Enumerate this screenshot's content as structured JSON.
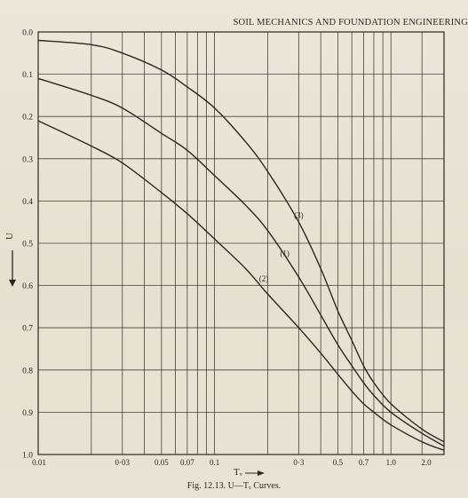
{
  "header": {
    "running_head": "SOIL MECHANICS AND FOUNDATION ENGINEERING"
  },
  "caption": {
    "text": "Fig. 12.13. U—Tᵥ Curves."
  },
  "chart_data": {
    "type": "line",
    "title": "",
    "xlabel": "Tᵥ",
    "ylabel": "U",
    "x_scale": "log",
    "xlim": [
      0.01,
      2.0
    ],
    "ylim": [
      0.0,
      1.0
    ],
    "y_inverted": true,
    "grid": true,
    "x_tick_labels": [
      "0.01",
      "0·03",
      "0.05",
      "0.07",
      "0.1",
      "0·3",
      "0.5",
      "0.7",
      "1.0",
      "2.0"
    ],
    "x_tick_values": [
      0.01,
      0.03,
      0.05,
      0.07,
      0.1,
      0.3,
      0.5,
      0.7,
      1.0,
      2.0
    ],
    "y_tick_labels": [
      "0.0",
      "0.1",
      "0.2",
      "0.3",
      "0.4",
      "0.5",
      "0.6",
      "0.7",
      "0.8",
      "0.9",
      "1.0"
    ],
    "y_tick_values": [
      0.0,
      0.1,
      0.2,
      0.3,
      0.4,
      0.5,
      0.6,
      0.7,
      0.8,
      0.9,
      1.0
    ],
    "series": [
      {
        "name": "(1)",
        "x": [
          0.01,
          0.02,
          0.03,
          0.05,
          0.07,
          0.1,
          0.15,
          0.2,
          0.3,
          0.4,
          0.5,
          0.6,
          0.7,
          0.8,
          1.0,
          1.5,
          2.0
        ],
        "y": [
          0.11,
          0.15,
          0.18,
          0.24,
          0.28,
          0.34,
          0.41,
          0.47,
          0.58,
          0.67,
          0.74,
          0.79,
          0.83,
          0.86,
          0.9,
          0.95,
          0.98
        ]
      },
      {
        "name": "(2)",
        "x": [
          0.01,
          0.02,
          0.03,
          0.05,
          0.07,
          0.1,
          0.15,
          0.2,
          0.3,
          0.4,
          0.5,
          0.6,
          0.7,
          0.8,
          1.0,
          1.5,
          2.0
        ],
        "y": [
          0.21,
          0.27,
          0.31,
          0.38,
          0.43,
          0.49,
          0.56,
          0.62,
          0.7,
          0.76,
          0.81,
          0.85,
          0.88,
          0.9,
          0.93,
          0.97,
          0.99
        ]
      },
      {
        "name": "(3)",
        "x": [
          0.01,
          0.02,
          0.03,
          0.05,
          0.07,
          0.1,
          0.15,
          0.2,
          0.3,
          0.4,
          0.5,
          0.6,
          0.7,
          0.8,
          1.0,
          1.5,
          2.0
        ],
        "y": [
          0.02,
          0.03,
          0.05,
          0.09,
          0.13,
          0.18,
          0.26,
          0.33,
          0.45,
          0.56,
          0.66,
          0.73,
          0.79,
          0.83,
          0.88,
          0.94,
          0.97
        ]
      }
    ],
    "line_color": "#2b2722"
  }
}
